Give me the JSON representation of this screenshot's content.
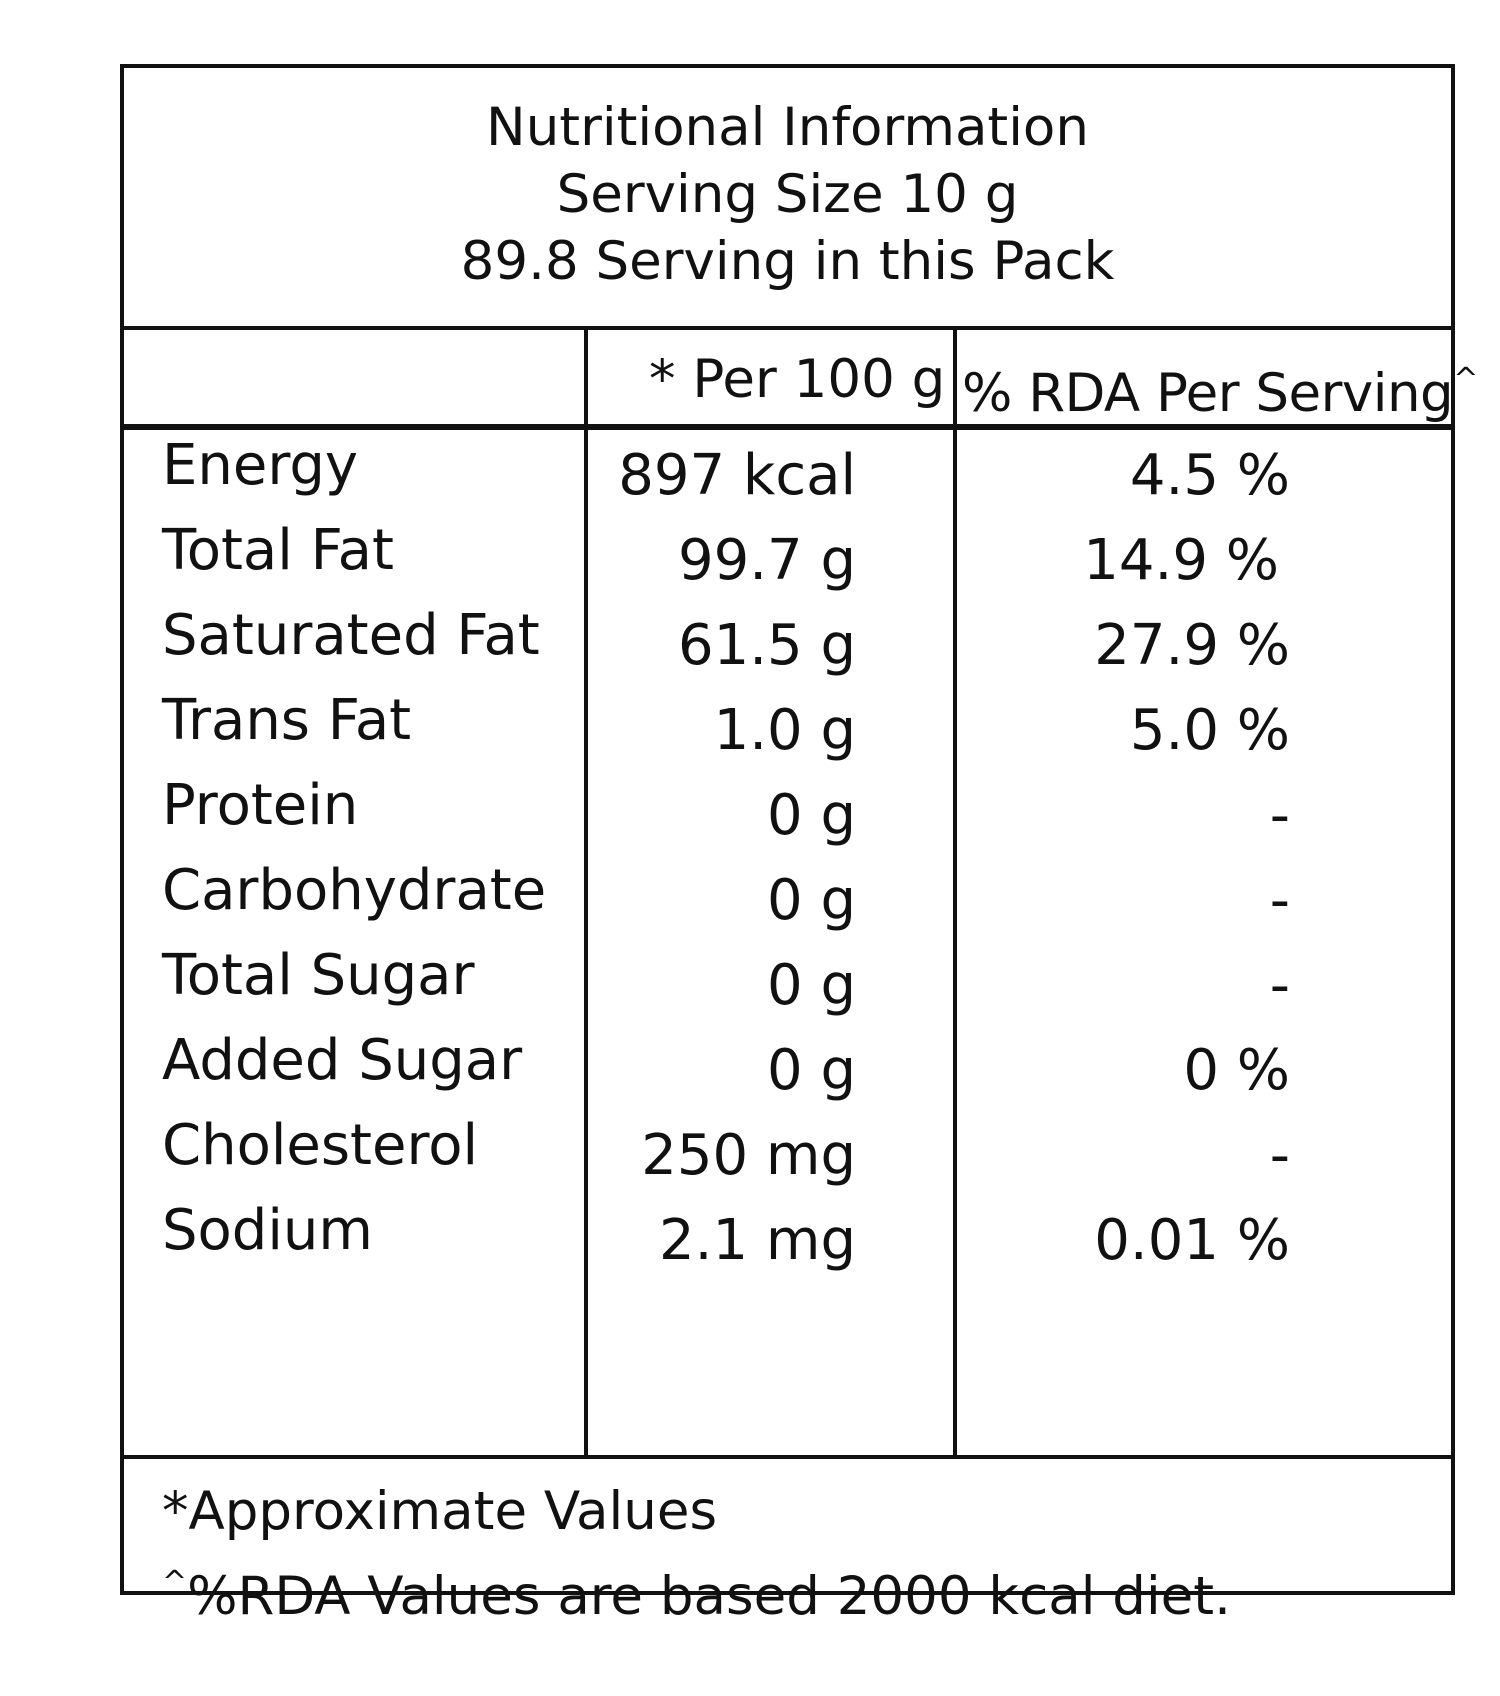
{
  "header": {
    "title": "Nutritional Information",
    "serving_size": "Serving Size 10 g",
    "servings_per_pack": "89.8 Serving in this Pack"
  },
  "columns": {
    "blank": "",
    "per_100g": "* Per 100 g",
    "rda_label": "% RDA Per Serving",
    "rda_marker": "^"
  },
  "rows": [
    {
      "name": "Energy",
      "per_100g": "897 kcal",
      "rda": "4.5 %"
    },
    {
      "name": "Total Fat",
      "per_100g": "99.7 g",
      "rda": "14.9 %"
    },
    {
      "name": "Saturated Fat",
      "per_100g": "61.5 g",
      "rda": "27.9 %"
    },
    {
      "name": "Trans Fat",
      "per_100g": "1.0 g",
      "rda": "5.0 %"
    },
    {
      "name": "Protein",
      "per_100g": "0 g",
      "rda": "-"
    },
    {
      "name": "Carbohydrate",
      "per_100g": "0 g",
      "rda": "-"
    },
    {
      "name": "Total Sugar",
      "per_100g": "0 g",
      "rda": "-"
    },
    {
      "name": "Added Sugar",
      "per_100g": "0 g",
      "rda": "0 %"
    },
    {
      "name": "Cholesterol",
      "per_100g": "250 mg",
      "rda": "-"
    },
    {
      "name": "Sodium",
      "per_100g": "2.1 mg",
      "rda": "0.01 %"
    }
  ],
  "footer": {
    "note_approx": "*Approximate Values",
    "note_rda_marker": "^",
    "note_rda": "%RDA Values are based 2000 kcal diet."
  },
  "colors": {
    "ink": "#111111",
    "background": "#ffffff"
  }
}
